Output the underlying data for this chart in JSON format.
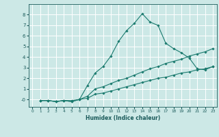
{
  "xlabel": "Humidex (Indice chaleur)",
  "ylabel": "",
  "bg_color": "#cce8e6",
  "grid_color": "#ffffff",
  "line_color": "#1a7a6e",
  "xlim": [
    -0.5,
    23.5
  ],
  "ylim": [
    -0.7,
    9.0
  ],
  "yticks": [
    0,
    1,
    2,
    3,
    4,
    5,
    6,
    7,
    8
  ],
  "ytick_labels": [
    "-0",
    "1",
    "2",
    "3",
    "4",
    "5",
    "6",
    "7",
    "8"
  ],
  "xticks": [
    0,
    1,
    2,
    3,
    4,
    5,
    6,
    7,
    8,
    9,
    10,
    11,
    12,
    13,
    14,
    15,
    16,
    17,
    18,
    19,
    20,
    21,
    22,
    23
  ],
  "line1_x": [
    1,
    2,
    3,
    4,
    5,
    6,
    7,
    8,
    9,
    10,
    11,
    12,
    13,
    14,
    15,
    16,
    17,
    18,
    19,
    20,
    21,
    22,
    23
  ],
  "line1_y": [
    -0.1,
    -0.1,
    -0.2,
    -0.1,
    -0.1,
    0.0,
    1.3,
    2.5,
    3.1,
    4.1,
    5.5,
    6.5,
    7.2,
    8.1,
    7.3,
    7.0,
    5.3,
    4.8,
    4.4,
    3.9,
    2.9,
    2.8,
    3.1
  ],
  "line2_x": [
    1,
    2,
    3,
    4,
    5,
    6,
    7,
    8,
    9,
    10,
    11,
    12,
    13,
    14,
    15,
    16,
    17,
    18,
    19,
    20,
    21,
    22,
    23
  ],
  "line2_y": [
    -0.1,
    -0.1,
    -0.2,
    -0.1,
    -0.2,
    0.0,
    0.3,
    1.0,
    1.2,
    1.5,
    1.8,
    2.0,
    2.3,
    2.6,
    2.9,
    3.1,
    3.4,
    3.6,
    3.8,
    4.1,
    4.3,
    4.5,
    4.8
  ],
  "line3_x": [
    1,
    2,
    3,
    4,
    5,
    6,
    7,
    8,
    9,
    10,
    11,
    12,
    13,
    14,
    15,
    16,
    17,
    18,
    19,
    20,
    21,
    22,
    23
  ],
  "line3_y": [
    -0.1,
    -0.1,
    -0.2,
    -0.1,
    -0.2,
    0.0,
    0.1,
    0.5,
    0.6,
    0.8,
    1.0,
    1.2,
    1.4,
    1.6,
    1.8,
    2.0,
    2.1,
    2.3,
    2.5,
    2.6,
    2.8,
    2.9,
    3.1
  ]
}
